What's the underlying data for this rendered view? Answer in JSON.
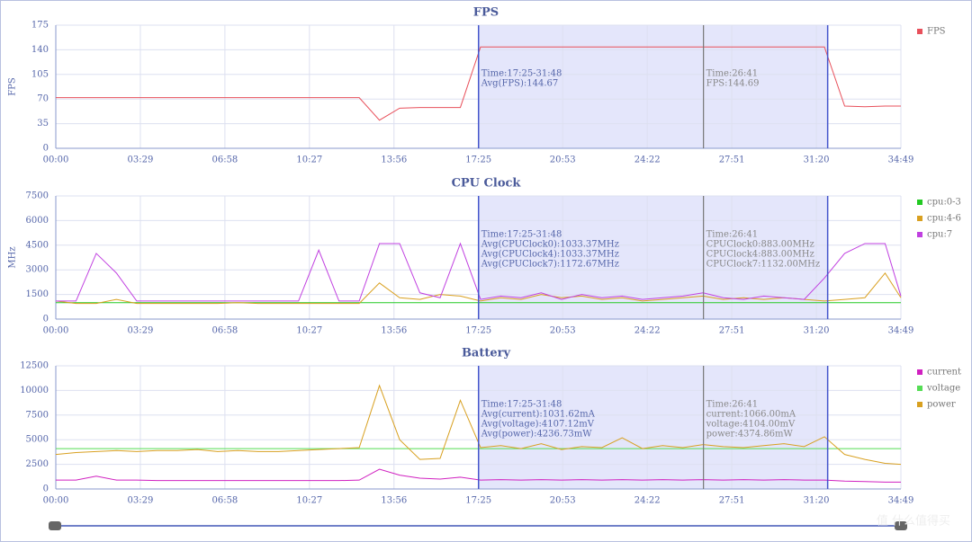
{
  "chart_data": [
    {
      "type": "line",
      "title": "FPS",
      "ylabel": "FPS",
      "grid": true,
      "xlim": [
        0,
        2089
      ],
      "xticks": [
        {
          "value": 0,
          "label": "00:00"
        },
        {
          "value": 209,
          "label": "03:29"
        },
        {
          "value": 418,
          "label": "06:58"
        },
        {
          "value": 627,
          "label": "10:27"
        },
        {
          "value": 836,
          "label": "13:56"
        },
        {
          "value": 1045,
          "label": "17:25"
        },
        {
          "value": 1253,
          "label": "20:53"
        },
        {
          "value": 1462,
          "label": "24:22"
        },
        {
          "value": 1671,
          "label": "27:51"
        },
        {
          "value": 1880,
          "label": "31:20"
        },
        {
          "value": 2089,
          "label": "34:49"
        }
      ],
      "ylim": [
        0,
        175
      ],
      "yticks": [
        0,
        35,
        70,
        105,
        140,
        175
      ],
      "x": [
        0,
        50,
        100,
        150,
        200,
        250,
        300,
        350,
        400,
        450,
        500,
        550,
        600,
        650,
        700,
        750,
        800,
        850,
        900,
        950,
        1000,
        1050,
        1100,
        1150,
        1200,
        1250,
        1300,
        1350,
        1400,
        1450,
        1500,
        1550,
        1600,
        1650,
        1700,
        1750,
        1800,
        1850,
        1900,
        1950,
        2000,
        2050,
        2089
      ],
      "series": [
        {
          "name": "FPS",
          "color": "#e8505b",
          "values": [
            72,
            72,
            72,
            72,
            72,
            72,
            72,
            72,
            72,
            72,
            72,
            72,
            72,
            72,
            72,
            72,
            40,
            57,
            58,
            58,
            58,
            144,
            144,
            144,
            144,
            144,
            144,
            144,
            144,
            144,
            144,
            144,
            144,
            144,
            144,
            144,
            144,
            144,
            144,
            60,
            59,
            60,
            60
          ]
        }
      ],
      "highlight": [
        1045,
        1908
      ],
      "cursor": 1601,
      "range_text": [
        "Time:17:25-31:48",
        "Avg(FPS):144.67"
      ],
      "cursor_text": [
        "Time:26:41",
        "FPS:144.69"
      ]
    },
    {
      "type": "line",
      "title": "CPU Clock",
      "ylabel": "MHz",
      "grid": true,
      "xlim": [
        0,
        2089
      ],
      "xticks": [
        {
          "value": 0,
          "label": "00:00"
        },
        {
          "value": 209,
          "label": "03:29"
        },
        {
          "value": 418,
          "label": "06:58"
        },
        {
          "value": 627,
          "label": "10:27"
        },
        {
          "value": 836,
          "label": "13:56"
        },
        {
          "value": 1045,
          "label": "17:25"
        },
        {
          "value": 1253,
          "label": "20:53"
        },
        {
          "value": 1462,
          "label": "24:22"
        },
        {
          "value": 1671,
          "label": "27:51"
        },
        {
          "value": 1880,
          "label": "31:20"
        },
        {
          "value": 2089,
          "label": "34:49"
        }
      ],
      "ylim": [
        0,
        7500
      ],
      "yticks": [
        0,
        1500,
        3000,
        4500,
        6000,
        7500
      ],
      "x": [
        0,
        50,
        100,
        150,
        200,
        250,
        300,
        350,
        400,
        450,
        500,
        550,
        600,
        650,
        700,
        750,
        800,
        850,
        900,
        950,
        1000,
        1050,
        1100,
        1150,
        1200,
        1250,
        1300,
        1350,
        1400,
        1450,
        1500,
        1550,
        1600,
        1650,
        1700,
        1750,
        1800,
        1850,
        1900,
        1950,
        2000,
        2050,
        2089
      ],
      "series": [
        {
          "name": "cpu:0-3",
          "color": "#22c922",
          "values": [
            1000,
            1000,
            1000,
            1000,
            1000,
            1000,
            1000,
            1000,
            1000,
            1000,
            1000,
            1000,
            1000,
            1000,
            1000,
            1000,
            1000,
            1000,
            1000,
            1000,
            1000,
            1000,
            1000,
            1000,
            1000,
            1000,
            1000,
            1000,
            1000,
            1000,
            1000,
            1000,
            1000,
            1000,
            1000,
            1000,
            1000,
            1000,
            1000,
            1000,
            1000,
            1000,
            1000
          ]
        },
        {
          "name": "cpu:4-6",
          "color": "#d9a020",
          "values": [
            1100,
            950,
            950,
            1200,
            950,
            950,
            950,
            950,
            950,
            1000,
            950,
            950,
            950,
            950,
            950,
            950,
            2200,
            1300,
            1200,
            1500,
            1400,
            1100,
            1300,
            1200,
            1500,
            1300,
            1400,
            1200,
            1300,
            1100,
            1200,
            1300,
            1400,
            1200,
            1300,
            1200,
            1300,
            1200,
            1100,
            1200,
            1300,
            2800,
            1300
          ]
        },
        {
          "name": "cpu:7",
          "color": "#c040e0",
          "values": [
            1100,
            1100,
            4000,
            2800,
            1100,
            1100,
            1100,
            1100,
            1100,
            1100,
            1100,
            1100,
            1100,
            4200,
            1100,
            1100,
            4600,
            4600,
            1600,
            1300,
            4600,
            1200,
            1400,
            1300,
            1600,
            1200,
            1500,
            1300,
            1400,
            1200,
            1300,
            1400,
            1600,
            1300,
            1200,
            1400,
            1300,
            1200,
            2500,
            4000,
            4600,
            4600,
            1400
          ]
        }
      ],
      "highlight": [
        1045,
        1908
      ],
      "cursor": 1601,
      "range_text": [
        "Time:17:25-31:48",
        "Avg(CPUClock0):1033.37MHz",
        "Avg(CPUClock4):1033.37MHz",
        "Avg(CPUClock7):1172.67MHz"
      ],
      "cursor_text": [
        "Time:26:41",
        "CPUClock0:883.00MHz",
        "CPUClock4:883.00MHz",
        "CPUClock7:1132.00MHz"
      ]
    },
    {
      "type": "line",
      "title": "Battery",
      "grid": true,
      "xlim": [
        0,
        2089
      ],
      "xticks": [
        {
          "value": 0,
          "label": "00:00"
        },
        {
          "value": 209,
          "label": "03:29"
        },
        {
          "value": 418,
          "label": "06:58"
        },
        {
          "value": 627,
          "label": "10:27"
        },
        {
          "value": 836,
          "label": "13:56"
        },
        {
          "value": 1045,
          "label": "17:25"
        },
        {
          "value": 1253,
          "label": "20:53"
        },
        {
          "value": 1462,
          "label": "24:22"
        },
        {
          "value": 1671,
          "label": "27:51"
        },
        {
          "value": 1880,
          "label": "31:20"
        },
        {
          "value": 2089,
          "label": "34:49"
        }
      ],
      "ylim": [
        0,
        12500
      ],
      "yticks": [
        0,
        2500,
        5000,
        7500,
        10000,
        12500
      ],
      "x": [
        0,
        50,
        100,
        150,
        200,
        250,
        300,
        350,
        400,
        450,
        500,
        550,
        600,
        650,
        700,
        750,
        800,
        850,
        900,
        950,
        1000,
        1050,
        1100,
        1150,
        1200,
        1250,
        1300,
        1350,
        1400,
        1450,
        1500,
        1550,
        1600,
        1650,
        1700,
        1750,
        1800,
        1850,
        1900,
        1950,
        2000,
        2050,
        2089
      ],
      "series": [
        {
          "name": "current",
          "color": "#d020c0",
          "values": [
            900,
            900,
            1300,
            900,
            900,
            850,
            850,
            850,
            850,
            850,
            850,
            850,
            850,
            850,
            850,
            900,
            2000,
            1400,
            1100,
            1000,
            1200,
            900,
            950,
            900,
            950,
            900,
            950,
            900,
            950,
            900,
            950,
            900,
            950,
            900,
            950,
            900,
            950,
            900,
            900,
            800,
            750,
            700,
            700
          ]
        },
        {
          "name": "voltage",
          "color": "#55dd55",
          "values": [
            4100,
            4100,
            4100,
            4100,
            4100,
            4100,
            4100,
            4100,
            4100,
            4100,
            4100,
            4100,
            4100,
            4100,
            4100,
            4100,
            4100,
            4100,
            4100,
            4100,
            4100,
            4100,
            4100,
            4100,
            4100,
            4100,
            4100,
            4100,
            4100,
            4100,
            4100,
            4100,
            4100,
            4100,
            4100,
            4100,
            4100,
            4100,
            4100,
            4100,
            4100,
            4100,
            4100
          ]
        },
        {
          "name": "power",
          "color": "#d8a020",
          "values": [
            3500,
            3700,
            3800,
            3900,
            3800,
            3900,
            3900,
            4000,
            3800,
            3900,
            3800,
            3800,
            3900,
            4000,
            4100,
            4200,
            10500,
            5000,
            3000,
            3100,
            9000,
            4200,
            4400,
            4100,
            4600,
            4000,
            4300,
            4200,
            5200,
            4100,
            4400,
            4200,
            4500,
            4300,
            4200,
            4400,
            4600,
            4300,
            5300,
            3500,
            3000,
            2600,
            2500
          ]
        }
      ],
      "highlight": [
        1045,
        1908
      ],
      "cursor": 1601,
      "range_text": [
        "Time:17:25-31:48",
        "Avg(current):1031.62mA",
        "Avg(voltage):4107.12mV",
        "Avg(power):4236.73mW"
      ],
      "cursor_text": [
        "Time:26:41",
        "current:1066.00mA",
        "voltage:4104.00mV",
        "power:4374.86mW"
      ]
    }
  ],
  "watermark": "值 什么值得买"
}
